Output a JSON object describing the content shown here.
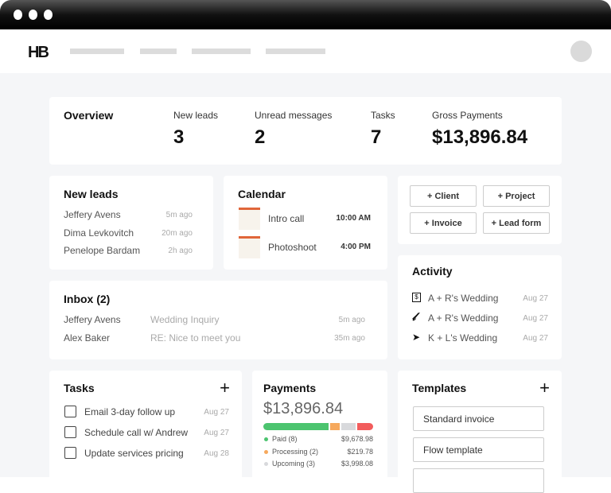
{
  "header": {
    "logo": "HB"
  },
  "overview": {
    "title": "Overview",
    "stats": [
      {
        "label": "New leads",
        "value": "3"
      },
      {
        "label": "Unread messages",
        "value": "2"
      },
      {
        "label": "Tasks",
        "value": "7"
      },
      {
        "label": "Gross Payments",
        "value": "$13,896.84"
      }
    ]
  },
  "new_leads": {
    "title": "New leads",
    "items": [
      {
        "name": "Jeffery Avens",
        "time": "5m ago"
      },
      {
        "name": "Dima Levkovitch",
        "time": "20m ago"
      },
      {
        "name": "Penelope Bardam",
        "time": "2h ago"
      }
    ]
  },
  "calendar": {
    "title": "Calendar",
    "accent": "#e0663a",
    "items": [
      {
        "name": "Intro call",
        "time": "10:00 AM"
      },
      {
        "name": "Photoshoot",
        "time": "4:00 PM"
      }
    ]
  },
  "quick_actions": [
    "+ Client",
    "+ Project",
    "+ Invoice",
    "+ Lead form"
  ],
  "inbox": {
    "title": "Inbox (2)",
    "items": [
      {
        "from": "Jeffery Avens",
        "subject": "Wedding Inquiry",
        "time": "5m ago"
      },
      {
        "from": "Alex Baker",
        "subject": "RE: Nice to meet you",
        "time": "35m ago"
      }
    ]
  },
  "activity": {
    "title": "Activity",
    "items": [
      {
        "icon": "invoice-icon",
        "label": "A + R's Wedding",
        "date": "Aug 27"
      },
      {
        "icon": "signature-icon",
        "label": "A + R's Wedding",
        "date": "Aug 27"
      },
      {
        "icon": "send-icon",
        "label": "K + L's Wedding",
        "date": "Aug 27"
      }
    ]
  },
  "tasks": {
    "title": "Tasks",
    "items": [
      {
        "label": "Email 3-day follow up",
        "date": "Aug 27"
      },
      {
        "label": "Schedule call w/ Andrew",
        "date": "Aug 27"
      },
      {
        "label": "Update services pricing",
        "date": "Aug 28"
      }
    ]
  },
  "payments": {
    "title": "Payments",
    "total": "$13,896.84",
    "rows": [
      {
        "label": "Paid (8)",
        "amount": "$9,678.98",
        "color": "#4cc46f"
      },
      {
        "label": "Processing (2)",
        "amount": "$219.78",
        "color": "#f6a95d"
      },
      {
        "label": "Upcoming (3)",
        "amount": "$3,998.08",
        "color": "#d8d9dc"
      }
    ],
    "overdue_color": "#f25c5c"
  },
  "templates": {
    "title": "Templates",
    "items": [
      "Standard invoice",
      "Flow template",
      ""
    ]
  }
}
